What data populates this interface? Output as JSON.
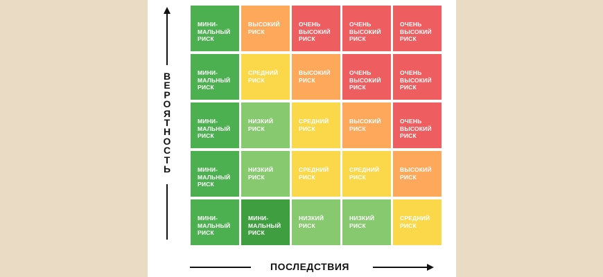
{
  "axes": {
    "y_label": "ВЕРОЯТНОСТЬ",
    "x_label": "ПОСЛЕДСТВИЯ"
  },
  "colors": {
    "minimal": "#4caf50",
    "minimal_dark": "#3e9e40",
    "low": "#86c96f",
    "medium": "#fbd849",
    "high": "#fda85b",
    "very_high": "#ee5d5f"
  },
  "matrix": [
    [
      {
        "label": "МИНИ-\nМАЛЬНЫЙ\nРИСК",
        "level": "minimal"
      },
      {
        "label": "ВЫСОКИЙ\nРИСК",
        "level": "high"
      },
      {
        "label": "ОЧЕНЬ\nВЫСОКИЙ\nРИСК",
        "level": "very_high"
      },
      {
        "label": "ОЧЕНЬ\nВЫСОКИЙ\nРИСК",
        "level": "very_high"
      },
      {
        "label": "ОЧЕНЬ\nВЫСОКИЙ\nРИСК",
        "level": "very_high"
      }
    ],
    [
      {
        "label": "МИНИ-\nМАЛЬНЫЙ\nРИСК",
        "level": "minimal"
      },
      {
        "label": "СРЕДНИЙ\nРИСК",
        "level": "medium"
      },
      {
        "label": "ВЫСОКИЙ\nРИСК",
        "level": "high"
      },
      {
        "label": "ОЧЕНЬ\nВЫСОКИЙ\nРИСК",
        "level": "very_high"
      },
      {
        "label": "ОЧЕНЬ\nВЫСОКИЙ\nРИСК",
        "level": "very_high"
      }
    ],
    [
      {
        "label": "МИНИ-\nМАЛЬНЫЙ\nРИСК",
        "level": "minimal"
      },
      {
        "label": "НИЗКИЙ\nРИСК",
        "level": "low"
      },
      {
        "label": "СРЕДНИЙ\nРИСК",
        "level": "medium"
      },
      {
        "label": "ВЫСОКИЙ\nРИСК",
        "level": "high"
      },
      {
        "label": "ОЧЕНЬ\nВЫСОКИЙ\nРИСК",
        "level": "very_high"
      }
    ],
    [
      {
        "label": "МИНИ-\nМАЛЬНЫЙ\nРИСК",
        "level": "minimal"
      },
      {
        "label": "НИЗКИЙ\nРИСК",
        "level": "low"
      },
      {
        "label": "СРЕДНИЙ\nРИСК",
        "level": "medium"
      },
      {
        "label": "СРЕДНИЙ\nРИСК",
        "level": "medium"
      },
      {
        "label": "ВЫСОКИЙ\nРИСК",
        "level": "high"
      }
    ],
    [
      {
        "label": "МИНИ-\nМАЛЬНЫЙ\nРИСК",
        "level": "minimal"
      },
      {
        "label": "МИНИ-\nМАЛЬНЫЙ\nРИСК",
        "level": "minimal_dark"
      },
      {
        "label": "НИЗКИЙ\nРИСК",
        "level": "low"
      },
      {
        "label": "НИЗКИЙ\nРИСК",
        "level": "low"
      },
      {
        "label": "СРЕДНИЙ\nРИСК",
        "level": "medium"
      }
    ]
  ]
}
